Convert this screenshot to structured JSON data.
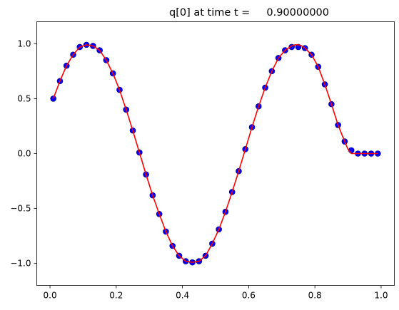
{
  "chart_data": {
    "type": "scatter",
    "title": "q[0] at time t =     0.90000000",
    "xlabel": "",
    "ylabel": "",
    "xlim": [
      -0.04,
      1.04
    ],
    "ylim": [
      -1.2,
      1.2
    ],
    "grid": false,
    "x_ticks": [
      0.0,
      0.2,
      0.4,
      0.6,
      0.8,
      1.0
    ],
    "x_tick_labels": [
      "0.0",
      "0.2",
      "0.4",
      "0.6",
      "0.8",
      "1.0"
    ],
    "y_ticks": [
      -1.0,
      -0.5,
      0.0,
      0.5,
      1.0
    ],
    "y_tick_labels": [
      "−1.0",
      "−0.5",
      "0.0",
      "0.5",
      "1.0"
    ],
    "colors": {
      "points": "#0000ff",
      "points_edge": "#000066",
      "line": "#ff0000"
    },
    "series": [
      {
        "kind": "points",
        "x": [
          0.01,
          0.03,
          0.05,
          0.07,
          0.09,
          0.11,
          0.13,
          0.15,
          0.17,
          0.19,
          0.21,
          0.23,
          0.25,
          0.27,
          0.29,
          0.31,
          0.33,
          0.35,
          0.37,
          0.39,
          0.41,
          0.43,
          0.45,
          0.47,
          0.49,
          0.51,
          0.53,
          0.55,
          0.57,
          0.59,
          0.61,
          0.63,
          0.65,
          0.67,
          0.69,
          0.71,
          0.73,
          0.75,
          0.77,
          0.79,
          0.81,
          0.83,
          0.85,
          0.87,
          0.89,
          0.91,
          0.93,
          0.95,
          0.97,
          0.99
        ],
        "y": [
          0.5,
          0.66,
          0.8,
          0.9,
          0.97,
          0.99,
          0.98,
          0.94,
          0.85,
          0.73,
          0.58,
          0.4,
          0.21,
          0.01,
          -0.19,
          -0.38,
          -0.55,
          -0.71,
          -0.84,
          -0.93,
          -0.98,
          -0.99,
          -0.98,
          -0.93,
          -0.82,
          -0.69,
          -0.53,
          -0.35,
          -0.16,
          0.04,
          0.24,
          0.43,
          0.6,
          0.75,
          0.87,
          0.94,
          0.97,
          0.97,
          0.96,
          0.9,
          0.79,
          0.63,
          0.45,
          0.26,
          0.11,
          0.03,
          0.0,
          0.0,
          0.0,
          0.0
        ]
      },
      {
        "kind": "line",
        "x": [
          0.01,
          0.03,
          0.05,
          0.07,
          0.09,
          0.11,
          0.13,
          0.15,
          0.17,
          0.19,
          0.21,
          0.23,
          0.25,
          0.27,
          0.29,
          0.31,
          0.33,
          0.35,
          0.37,
          0.39,
          0.41,
          0.43,
          0.45,
          0.47,
          0.49,
          0.51,
          0.53,
          0.55,
          0.57,
          0.59,
          0.61,
          0.63,
          0.65,
          0.67,
          0.69,
          0.71,
          0.73,
          0.74,
          0.75,
          0.76,
          0.77,
          0.79,
          0.81,
          0.83,
          0.85,
          0.87,
          0.89,
          0.9,
          0.91,
          0.93,
          0.95,
          0.97,
          0.99
        ],
        "y": [
          0.5,
          0.66,
          0.8,
          0.9,
          0.97,
          0.99,
          0.98,
          0.94,
          0.85,
          0.73,
          0.58,
          0.4,
          0.21,
          0.01,
          -0.19,
          -0.38,
          -0.55,
          -0.71,
          -0.84,
          -0.93,
          -0.98,
          -0.99,
          -0.98,
          -0.93,
          -0.82,
          -0.69,
          -0.53,
          -0.35,
          -0.16,
          0.04,
          0.24,
          0.43,
          0.6,
          0.75,
          0.87,
          0.94,
          0.98,
          0.99,
          0.99,
          0.98,
          0.96,
          0.9,
          0.79,
          0.63,
          0.45,
          0.26,
          0.11,
          0.04,
          0.0,
          0.0,
          0.0,
          0.0,
          0.0
        ]
      }
    ]
  }
}
